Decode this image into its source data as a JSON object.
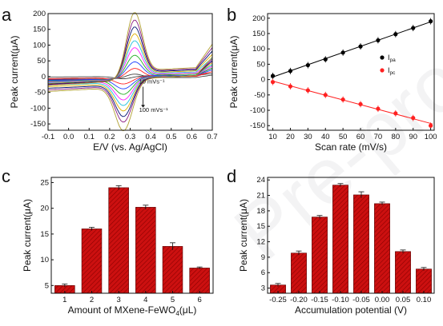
{
  "chart_data": [
    {
      "panel": "a",
      "type": "line",
      "xlabel": "E/V (vs. Ag/AgCl)",
      "ylabel": "Peak current(μA)",
      "xlim": [
        -0.1,
        0.7
      ],
      "ylim": [
        -170,
        200
      ],
      "xticks": [
        "-0.1",
        "0.0",
        "0.1",
        "0.2",
        "0.3",
        "0.4",
        "0.5",
        "0.6",
        "0.7"
      ],
      "yticks": [
        "-150",
        "-100",
        "-50",
        "0",
        "50",
        "100",
        "150",
        "200"
      ],
      "annotation_top": "10 mVs⁻¹",
      "annotation_bottom": "100 mVs⁻¹",
      "series": [
        {
          "scan_rate": 10,
          "color": "#444444",
          "ipa": 12,
          "ipc": -8
        },
        {
          "scan_rate": 20,
          "color": "#ff2020",
          "ipa": 28,
          "ipc": -22
        },
        {
          "scan_rate": 30,
          "color": "#2040ff",
          "ipa": 47,
          "ipc": -35
        },
        {
          "scan_rate": 40,
          "color": "#20b020",
          "ipa": 66,
          "ipc": -50
        },
        {
          "scan_rate": 50,
          "color": "#ff20ff",
          "ipa": 88,
          "ipc": -65
        },
        {
          "scan_rate": 60,
          "color": "#20c0e0",
          "ipa": 108,
          "ipc": -80
        },
        {
          "scan_rate": 70,
          "color": "#e0b000",
          "ipa": 128,
          "ipc": -95
        },
        {
          "scan_rate": 80,
          "color": "#001070",
          "ipa": 148,
          "ipc": -110
        },
        {
          "scan_rate": 90,
          "color": "#8a1a80",
          "ipa": 168,
          "ipc": -125
        },
        {
          "scan_rate": 100,
          "color": "#b0a030",
          "ipa": 190,
          "ipc": -150
        }
      ],
      "ipa_potential": 0.32,
      "ipc_potential": 0.27
    },
    {
      "panel": "b",
      "type": "scatter",
      "xlabel": "Scan rate (mV/s)",
      "ylabel": "Peak current(μA)",
      "xlim": [
        7,
        102
      ],
      "ylim": [
        -165,
        215
      ],
      "xticks": [
        "10",
        "20",
        "30",
        "40",
        "50",
        "60",
        "70",
        "80",
        "90",
        "100"
      ],
      "yticks": [
        "-150",
        "-100",
        "-50",
        "0",
        "50",
        "100",
        "150",
        "200"
      ],
      "x": [
        10,
        20,
        30,
        40,
        50,
        60,
        70,
        80,
        90,
        100
      ],
      "series": [
        {
          "name": "I_pa",
          "name_main": "I",
          "name_sub": "pa",
          "color": "#000000",
          "fit_color": "#000000",
          "values": [
            12,
            28,
            47,
            66,
            88,
            108,
            128,
            148,
            168,
            190
          ]
        },
        {
          "name": "I_pc",
          "name_main": "I",
          "name_sub": "pc",
          "color": "#ff2020",
          "fit_color": "#ff2020",
          "values": [
            -8,
            -22,
            -35,
            -50,
            -65,
            -80,
            -95,
            -110,
            -125,
            -150
          ]
        }
      ],
      "legend_placement": "right"
    },
    {
      "panel": "c",
      "type": "bar",
      "xlabel_main": "Amount of MXene-FeWO",
      "xlabel_sub": "4",
      "xlabel_end": "(μL)",
      "ylabel": "Peak current(μA)",
      "ylim": [
        3.5,
        26
      ],
      "yticks": [
        "5",
        "10",
        "15",
        "20",
        "25"
      ],
      "categories": [
        "1",
        "2",
        "3",
        "4",
        "5",
        "6"
      ],
      "values": [
        5.0,
        16.0,
        24.0,
        20.2,
        12.6,
        8.4
      ],
      "errors": [
        0.3,
        0.3,
        0.4,
        0.4,
        0.7,
        0.2
      ],
      "color": "#cc1010"
    },
    {
      "panel": "d",
      "type": "bar",
      "xlabel": "Accumulation potential (V)",
      "ylabel": "Peak current(μA)",
      "ylim": [
        2,
        24.5
      ],
      "yticks": [
        "3",
        "6",
        "9",
        "12",
        "15",
        "18",
        "21",
        "24"
      ],
      "categories": [
        "-0.25",
        "-0.20",
        "-0.15",
        "-0.10",
        "-0.05",
        "0.00",
        "0.05",
        "0.10"
      ],
      "values": [
        3.6,
        9.8,
        16.8,
        23.0,
        21.1,
        19.4,
        10.1,
        6.7
      ],
      "errors": [
        0.3,
        0.4,
        0.3,
        0.3,
        0.6,
        0.3,
        0.3,
        0.3
      ],
      "color": "#cc1010"
    }
  ],
  "panel_labels": [
    "a",
    "b",
    "c",
    "d"
  ],
  "watermark": "Pre-proof"
}
